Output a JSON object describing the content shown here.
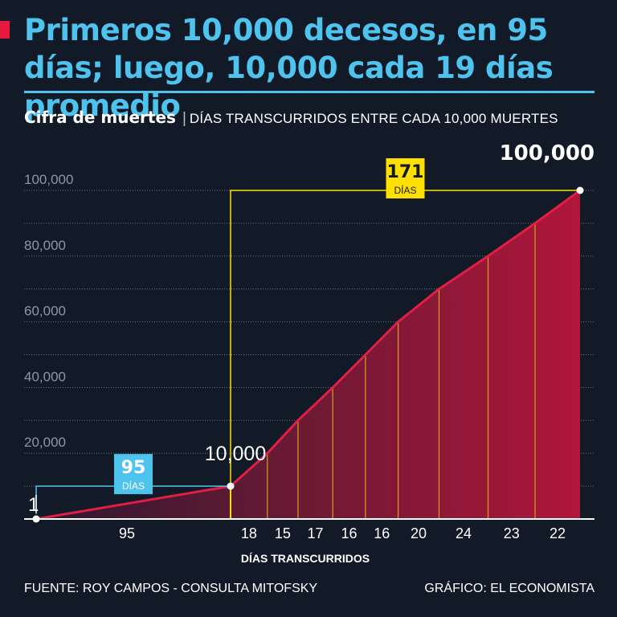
{
  "title": "Primeros 10,000 decesos, en 95 días; luego, 10,000 cada 19 días promedio",
  "subtitle_bold": "Cifra de muertes",
  "subtitle_sep": "|",
  "subtitle_desc": "DÍAS TRANSCURRIDOS ENTRE CADA 10,000 MUERTES",
  "source": "FUENTE: ROY CAMPOS - CONSULTA MITOFSKY",
  "credit": "GRÁFICO: EL ECONOMISTA",
  "colors": {
    "background": "#121a27",
    "title": "#4dc3ee",
    "accent_red": "#e5193b",
    "highlight_yellow": "#ffe000",
    "highlight_blue": "#4dc3ee"
  },
  "chart_data": {
    "type": "area",
    "xlabel": "DÍAS TRANSCURRIDOS",
    "ylabel": "",
    "ylim": [
      0,
      100000
    ],
    "y_ticks": [
      "20,000",
      "40,000",
      "60,000",
      "80,000",
      "100,000"
    ],
    "y_tick_values": [
      20000,
      40000,
      60000,
      80000,
      100000
    ],
    "grid": true,
    "series": [
      {
        "x_days": [
          0,
          95,
          113,
          128,
          145,
          161,
          177,
          197,
          221,
          244,
          266
        ],
        "y": [
          1,
          10000,
          20000,
          30000,
          40000,
          50000,
          60000,
          70000,
          80000,
          90000,
          100000
        ]
      }
    ],
    "interval_labels": [
      "95",
      "18",
      "15",
      "17",
      "16",
      "16",
      "20",
      "24",
      "23",
      "22"
    ],
    "point_labels": {
      "start": "1",
      "mid": "10,000",
      "end": "100,000"
    },
    "callouts": [
      {
        "value": "95",
        "unit": "DÍAS",
        "color": "#4dc3ee"
      },
      {
        "value": "171",
        "unit": "DÍAS",
        "color": "#ffe000"
      }
    ]
  }
}
